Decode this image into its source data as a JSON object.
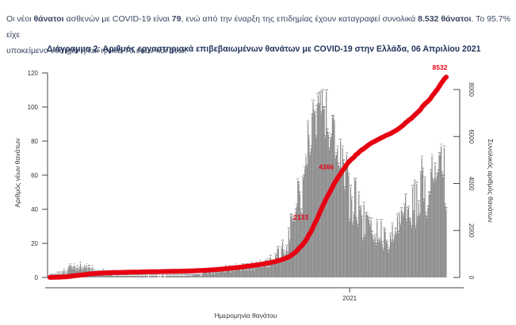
{
  "intro": {
    "p1a": "Οι νέοι ",
    "p1b": "θάνατοι",
    "p1c": " ασθενών με COVID-19 είναι ",
    "p1d": "79",
    "p1e": ", ενώ από την έναρξη της επιδημίας έχουν καταγραφεί συνολικά ",
    "p1f": "8.532 θάνατοι",
    "p1g": ". Το 95.7% είχε",
    "line2": "υποκείμενο νόσημα ή/και ηλικία 70 ετών και άνω."
  },
  "chart": {
    "title": "Διάγραμμα 2: Αριθμός εργαστηριακά επιβεβαιωμένων θανάτων με COVID-19 στην Ελλάδα, 06 Απριλίου 2021"
  },
  "chart_data": {
    "type": "bar+line",
    "title": "Διάγραμμα 2: Αριθμός εργαστηριακά επιβεβαιωμένων θανάτων με COVID-19 στην Ελλάδα, 06 Απριλίου 2021",
    "x_axis": {
      "label": "Ημερομηνία θανάτου",
      "tick_label": "2021",
      "start_date": "2020-03-12",
      "end_date": "2021-04-06",
      "total_days": 390,
      "tick_day": 295
    },
    "left_axis": {
      "label": "Αριθμός νέων θανάτων",
      "ticks": [
        0,
        20,
        40,
        60,
        80,
        100,
        120
      ],
      "max": 120
    },
    "right_axis": {
      "label": "Συνολικός αριθμός θανάτων",
      "ticks": [
        0,
        2000,
        4000,
        6000,
        8000
      ],
      "max": 8000
    },
    "bar_series": {
      "name": "Αριθμός νέων θανάτων",
      "color": "#8a8a8a",
      "label_color": "#444444",
      "anchors": [
        [
          0,
          0.5
        ],
        [
          10,
          2
        ],
        [
          20,
          5
        ],
        [
          27,
          7
        ],
        [
          37,
          5
        ],
        [
          49,
          3
        ],
        [
          64,
          1.2
        ],
        [
          81,
          0.8
        ],
        [
          111,
          0.7
        ],
        [
          135,
          1.2
        ],
        [
          156,
          2.5
        ],
        [
          173,
          4
        ],
        [
          187,
          5
        ],
        [
          203,
          6.5
        ],
        [
          217,
          9
        ],
        [
          227,
          14
        ],
        [
          234,
          22
        ],
        [
          241,
          35
        ],
        [
          248,
          55
        ],
        [
          255,
          80
        ],
        [
          261,
          100
        ],
        [
          266,
          108
        ],
        [
          271,
          100
        ],
        [
          278,
          85
        ],
        [
          285,
          70
        ],
        [
          292,
          58
        ],
        [
          299,
          48
        ],
        [
          306,
          38
        ],
        [
          313,
          30
        ],
        [
          320,
          26
        ],
        [
          327,
          24
        ],
        [
          334,
          22
        ],
        [
          341,
          26
        ],
        [
          348,
          32
        ],
        [
          355,
          40
        ],
        [
          362,
          48
        ],
        [
          369,
          56
        ],
        [
          376,
          62
        ],
        [
          383,
          70
        ],
        [
          388,
          72
        ],
        [
          390,
          40
        ]
      ]
    },
    "line_series": {
      "name": "Συνολικός αριθμός θανάτων",
      "color": "#e60012",
      "final_total": 8532,
      "milestones": [
        2133,
        4266
      ],
      "final_label": "8532"
    },
    "grid": false,
    "legend": "none"
  }
}
